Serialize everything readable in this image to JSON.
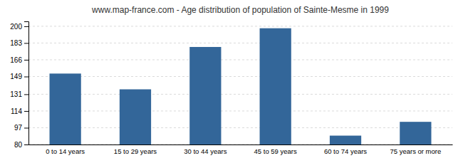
{
  "chart_data": {
    "type": "bar",
    "title": "www.map-france.com - Age distribution of population of Sainte-Mesme in 1999",
    "categories": [
      "0 to 14 years",
      "15 to 29 years",
      "30 to 44 years",
      "45 to 59 years",
      "60 to 74 years",
      "75 years or more"
    ],
    "values": [
      152,
      136,
      179,
      198,
      89,
      103
    ],
    "color": "#336699",
    "ylim": [
      80,
      205
    ],
    "yticks": [
      80,
      97,
      114,
      131,
      149,
      166,
      183,
      200
    ],
    "grid": true
  }
}
